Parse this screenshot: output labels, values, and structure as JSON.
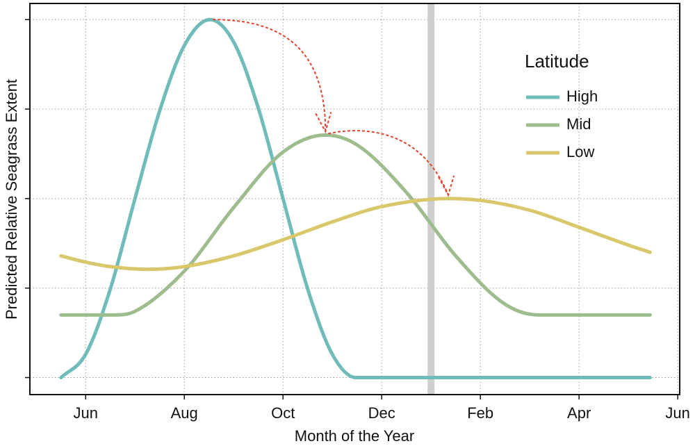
{
  "chart_data": {
    "type": "line",
    "xlabel": "Month of the Year",
    "ylabel": "Predicted Relative Seagrass Extent",
    "legend_title": "Latitude",
    "legend": "upper right",
    "grid": true,
    "xlim": [
      -1.13,
      12.04
    ],
    "xticks": [
      {
        "value": 0,
        "label": "Jun"
      },
      {
        "value": 2,
        "label": "Aug"
      },
      {
        "value": 4,
        "label": "Oct"
      },
      {
        "value": 6,
        "label": "Dec"
      },
      {
        "value": 8,
        "label": "Feb"
      },
      {
        "value": 10,
        "label": "Apr"
      },
      {
        "value": 12,
        "label": "Jun"
      }
    ],
    "ylim": [
      -0.19,
      4.18
    ],
    "yticks": [
      0,
      1,
      2,
      3,
      4
    ],
    "vline": {
      "x": 7,
      "color": "#cfcfcf"
    },
    "arrow_color": "#e8402a",
    "series": [
      {
        "name": "High",
        "color": "#6fbcbb",
        "x": [
          -0.5,
          0,
          0.5,
          1,
          1.5,
          2,
          2.52,
          3,
          3.5,
          4,
          4.5,
          5,
          5.48,
          11.44
        ],
        "values": [
          0,
          0.26,
          0.99,
          2,
          2.98,
          3.71,
          4,
          3.75,
          3.01,
          2,
          0.99,
          0.26,
          0,
          0
        ]
      },
      {
        "name": "Mid",
        "color": "#9dbd8f",
        "x": [
          -0.5,
          0.6,
          1,
          2,
          3,
          4,
          4.86,
          5.5,
          6.5,
          7.5,
          8.5,
          9.18,
          11.44
        ],
        "values": [
          0.7,
          0.7,
          0.74,
          1.19,
          1.9,
          2.52,
          2.71,
          2.6,
          2.07,
          1.36,
          0.82,
          0.7,
          0.7
        ]
      },
      {
        "name": "Low",
        "color": "#d9c76b",
        "x": [
          -0.5,
          0,
          0.5,
          1.27,
          2,
          3,
          4,
          5,
          6,
          7.35,
          8,
          9,
          10,
          11,
          11.44
        ],
        "values": [
          1.36,
          1.29,
          1.24,
          1.21,
          1.24,
          1.36,
          1.54,
          1.74,
          1.91,
          2,
          1.98,
          1.87,
          1.68,
          1.48,
          1.4
        ]
      }
    ]
  }
}
